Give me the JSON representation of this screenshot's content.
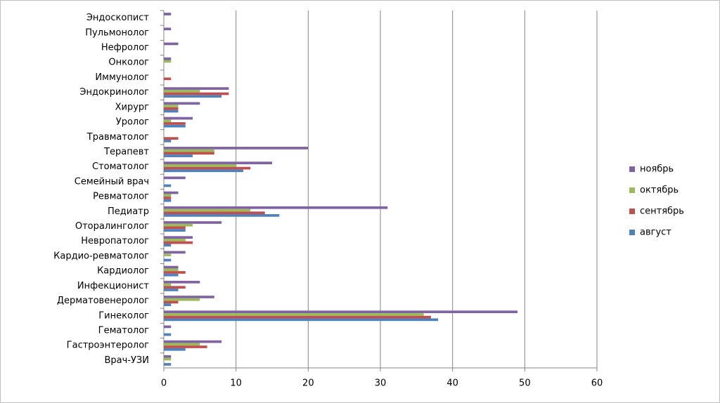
{
  "chart_data": {
    "type": "hbar",
    "categories": [
      "Эндоскопист",
      "Пульмонолог",
      "Нефролог",
      "Онколог",
      "Иммунолог",
      "Эндокринолог",
      "Хирург",
      "Уролог",
      "Травматолог",
      "Терапевт",
      "Стоматолог",
      "Семейный врач",
      "Ревматолог",
      "Педиатр",
      "Оторалинголог",
      "Невропатолог",
      "Кардио-ревматолог",
      "Кардиолог",
      "Инфекционист",
      "Дерматовенеролог",
      "Гинеколог",
      "Гематолог",
      "Гастроэнтеролог",
      "Врач-УЗИ"
    ],
    "series": [
      {
        "name": "ноябрь",
        "color": "#8064a2",
        "values": [
          1,
          1,
          2,
          1,
          0,
          9,
          5,
          4,
          0,
          20,
          15,
          3,
          2,
          31,
          8,
          4,
          3,
          2,
          5,
          7,
          49,
          1,
          8,
          1
        ]
      },
      {
        "name": "октябрь",
        "color": "#9bbb59",
        "values": [
          0,
          0,
          0,
          1,
          0,
          5,
          2,
          1,
          0,
          7,
          10,
          0,
          1,
          12,
          4,
          3,
          1,
          2,
          1,
          5,
          36,
          0,
          5,
          1
        ]
      },
      {
        "name": "сентябрь",
        "color": "#c0504d",
        "values": [
          0,
          0,
          0,
          0,
          1,
          9,
          2,
          3,
          2,
          7,
          12,
          0,
          1,
          14,
          3,
          4,
          0,
          3,
          3,
          2,
          37,
          0,
          6,
          0
        ]
      },
      {
        "name": "август",
        "color": "#4f81bd",
        "values": [
          0,
          0,
          0,
          0,
          0,
          8,
          2,
          3,
          1,
          4,
          11,
          1,
          1,
          16,
          3,
          1,
          1,
          2,
          2,
          1,
          38,
          1,
          3,
          1
        ]
      }
    ],
    "xlim": [
      0,
      60
    ],
    "xticks": [
      0,
      10,
      20,
      30,
      40,
      50,
      60
    ],
    "grid": true,
    "legend": "right"
  }
}
